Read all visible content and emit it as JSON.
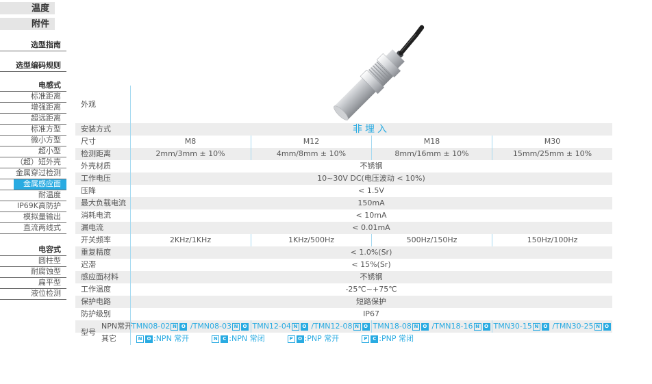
{
  "accent": "#29abe2",
  "stripe_color": "#ededed",
  "divider_color": "#a5d9f0",
  "sidebar": {
    "top_buttons": [
      {
        "label": "温度"
      },
      {
        "label": "附件"
      }
    ],
    "groups": [
      {
        "items": [
          {
            "label": "选型指南",
            "header": true
          }
        ]
      },
      {
        "items": [
          {
            "label": "选型编码规则",
            "header": true
          }
        ]
      },
      {
        "items": [
          {
            "label": "电感式",
            "header": true
          },
          {
            "label": "标准距离"
          },
          {
            "label": "增强距离"
          },
          {
            "label": "超远距离"
          },
          {
            "label": "标准方型"
          },
          {
            "label": "微小方型"
          },
          {
            "label": "超小型"
          },
          {
            "label": "（超）短外壳"
          },
          {
            "label": "金属穿过检测"
          },
          {
            "label": "金属感应面",
            "active": true
          },
          {
            "label": "耐温度"
          },
          {
            "label": "IP69K高防护"
          },
          {
            "label": "模拟量输出"
          },
          {
            "label": "直流两线式"
          }
        ]
      },
      {
        "items": [
          {
            "label": "电容式",
            "header": true
          },
          {
            "label": "圆柱型"
          },
          {
            "label": "耐腐蚀型"
          },
          {
            "label": "扁平型"
          },
          {
            "label": "液位检测"
          }
        ]
      }
    ]
  },
  "table": {
    "rows": [
      {
        "label": "外观",
        "type": "image"
      },
      {
        "label": "安装方式",
        "type": "merged",
        "value": "非埋入",
        "accent": true
      },
      {
        "label": "尺寸",
        "type": "cells",
        "cells": [
          "M8",
          "M12",
          "M18",
          "M30"
        ]
      },
      {
        "label": "检测距离",
        "type": "cells",
        "cells": [
          "2mm/3mm ± 10%",
          "4mm/8mm ± 10%",
          "8mm/16mm ± 10%",
          "15mm/25mm ± 10%"
        ]
      },
      {
        "label": "外壳材质",
        "type": "merged",
        "value": "不锈钢"
      },
      {
        "label": "工作电压",
        "type": "merged",
        "value": "10~30V DC(电压波动 < 10%)"
      },
      {
        "label": "压降",
        "type": "merged",
        "value": "< 1.5V"
      },
      {
        "label": "最大负载电流",
        "type": "merged",
        "value": "150mA"
      },
      {
        "label": "消耗电流",
        "type": "merged",
        "value": "< 10mA"
      },
      {
        "label": "漏电流",
        "type": "merged",
        "value": "< 0.01mA"
      },
      {
        "label": "开关频率",
        "type": "cells",
        "cells": [
          "2KHz/1KHz",
          "1KHz/500Hz",
          "500Hz/150Hz",
          "150Hz/100Hz"
        ]
      },
      {
        "label": "重复精度",
        "type": "merged",
        "value": "< 1.0%(Sr)"
      },
      {
        "label": "迟滞",
        "type": "merged",
        "value": "< 15%(Sr)"
      },
      {
        "label": "感应面材料",
        "type": "merged",
        "value": "不锈钢"
      },
      {
        "label": "工作温度",
        "type": "merged",
        "value": "-25℃~+75℃"
      },
      {
        "label": "保护电路",
        "type": "merged",
        "value": "短路保护"
      },
      {
        "label": "防护级别",
        "type": "merged",
        "value": "IP67"
      }
    ],
    "model_section": {
      "label": "型号",
      "model_suffix_boxes": [
        "N",
        "O"
      ],
      "npn_row": {
        "sublabel": "NPN常开",
        "models": [
          {
            "a": "TMN08-02",
            "b": "TMN08-03"
          },
          {
            "a": "TMN12-04",
            "b": "TMN12-08"
          },
          {
            "a": "TMN18-08",
            "b": "TMN18-16"
          },
          {
            "a": "TMN30-15",
            "b": "TMN30-25"
          }
        ]
      },
      "other_row": {
        "sublabel": "其它",
        "legend": [
          {
            "boxes": [
              "N",
              "O"
            ],
            "text": ":NPN 常开"
          },
          {
            "boxes": [
              "N",
              "C"
            ],
            "text": ":NPN 常闭"
          },
          {
            "boxes": [
              "P",
              "O"
            ],
            "text": ":PNP 常开"
          },
          {
            "boxes": [
              "P",
              "C"
            ],
            "text": ":PNP 常闭"
          }
        ]
      }
    }
  },
  "product_image": {
    "name": "cylindrical-proximity-sensor-photo"
  }
}
